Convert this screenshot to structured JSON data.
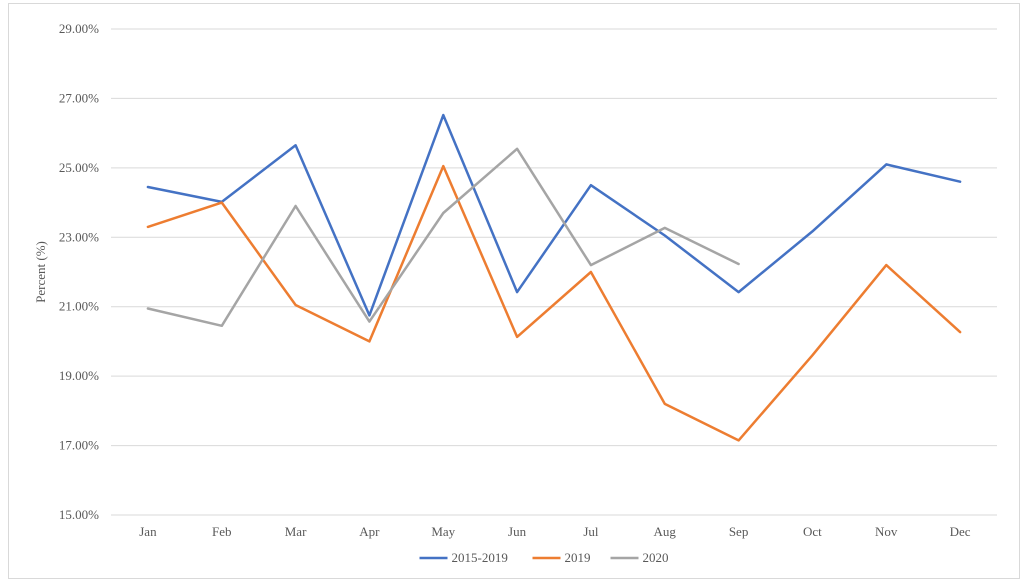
{
  "chart_data": {
    "type": "line",
    "title": "",
    "xlabel": "",
    "ylabel": "Percent (%)",
    "ylim": [
      15,
      29
    ],
    "y_tick_step": 2,
    "y_tick_format": "percent_2dp",
    "grid": "horizontal",
    "legend_position": "bottom",
    "categories": [
      "Jan",
      "Feb",
      "Mar",
      "Apr",
      "May",
      "Jun",
      "Jul",
      "Aug",
      "Sep",
      "Oct",
      "Nov",
      "Dec"
    ],
    "series": [
      {
        "name": "2015-2019",
        "color": "#4472c4",
        "values": [
          24.45,
          24.02,
          25.65,
          20.75,
          26.52,
          21.42,
          24.5,
          23.05,
          21.42,
          23.17,
          25.1,
          24.6
        ]
      },
      {
        "name": "2019",
        "color": "#ed7d31",
        "values": [
          23.3,
          24.0,
          21.05,
          20.0,
          25.05,
          20.13,
          22.0,
          18.2,
          17.15,
          19.6,
          22.2,
          20.27
        ]
      },
      {
        "name": "2020",
        "color": "#a5a5a5",
        "values": [
          20.95,
          20.45,
          23.9,
          20.57,
          23.7,
          25.55,
          22.2,
          23.27,
          22.23,
          null,
          null,
          null
        ]
      }
    ]
  }
}
